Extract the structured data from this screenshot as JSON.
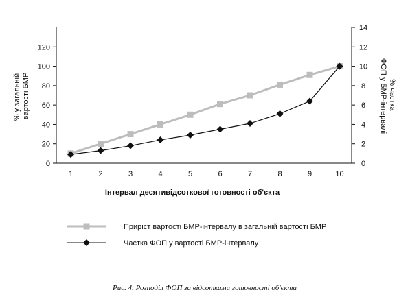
{
  "chart_data": {
    "type": "line",
    "title": "",
    "xlabel": "Інтервал десятивідсоткової готовності об'єкта",
    "ylabel_left": "% у загальній вартості БМР",
    "ylabel_right": "% частка ФОП у БМР-інтервалі",
    "x": [
      1,
      2,
      3,
      4,
      5,
      6,
      7,
      8,
      9,
      10
    ],
    "xlim": [
      1,
      10
    ],
    "ylim_left": [
      0,
      140
    ],
    "yticks_left": [
      0,
      20,
      40,
      60,
      80,
      100,
      120
    ],
    "ylim_right": [
      0,
      14
    ],
    "yticks_right": [
      0,
      2,
      4,
      6,
      8,
      10,
      12,
      14
    ],
    "legend_position": "bottom",
    "grid": false,
    "series": [
      {
        "name": "Приріст вартості БМР-інтервалу в загальній вартості БМР",
        "axis": "left",
        "marker": "square",
        "color": "#bdbdbd",
        "values": [
          10,
          20,
          30,
          40,
          50,
          61,
          70,
          81,
          91,
          100
        ]
      },
      {
        "name": "Частка ФОП у вартості БМР-інтервалу",
        "axis": "right",
        "marker": "diamond",
        "color": "#111111",
        "values": [
          0.9,
          1.3,
          1.8,
          2.4,
          2.9,
          3.5,
          4.1,
          5.1,
          6.4,
          10.0
        ]
      }
    ]
  },
  "caption": "Рис. 4. Розподіл ФОП за відсотками готовності об'єкта"
}
